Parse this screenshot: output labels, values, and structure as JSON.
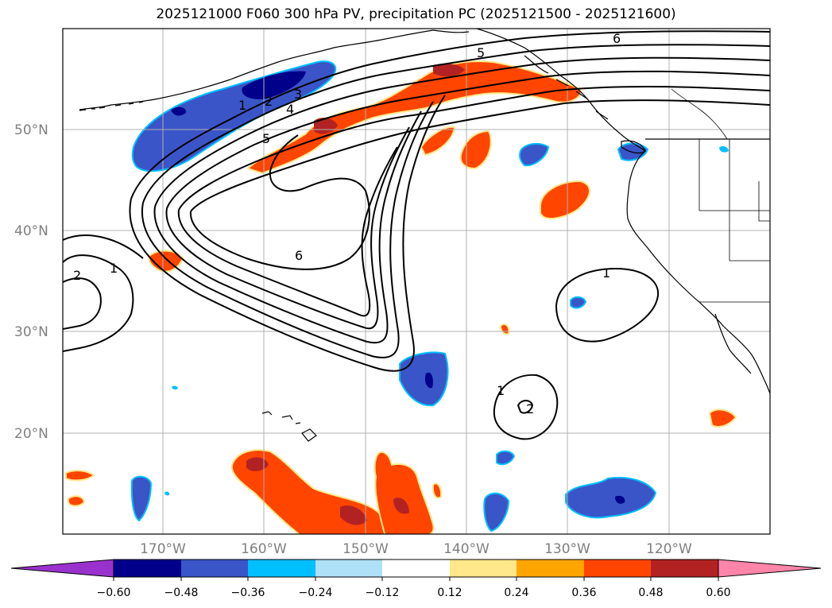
{
  "title": "2025121000 F060 300 hPa PV, precipitation PC (2025121500 - 2025121600)",
  "map": {
    "lat_labels": [
      "50°N",
      "40°N",
      "30°N",
      "20°N"
    ],
    "lon_labels": [
      "170°W",
      "160°W",
      "150°W",
      "140°W",
      "130°W",
      "120°W"
    ],
    "contour_labels": [
      "6",
      "5",
      "1",
      "2",
      "3",
      "4",
      "5",
      "6",
      "1",
      "2",
      "1",
      "1",
      "2"
    ]
  },
  "colorbar": {
    "ticks": [
      "−0.60",
      "−0.48",
      "−0.36",
      "−0.24",
      "−0.12",
      "0.12",
      "0.24",
      "0.36",
      "0.48",
      "0.60"
    ],
    "colors": [
      "#9932cc",
      "#00008b",
      "#3a55c8",
      "#00bfff",
      "#aee0f7",
      "#ffffff",
      "#ffe78a",
      "#ffa500",
      "#ff4500",
      "#b22222",
      "#ff85aa"
    ]
  },
  "colors": {
    "strong_positive": "#ff4500",
    "very_strong_positive": "#b22222",
    "strong_negative": "#3a55c8",
    "very_strong_negative": "#00008b",
    "weak_negative": "#00bfff",
    "weak_positive": "#ffe78a",
    "grid": "#b0b0b0",
    "land_outline": "#000000"
  }
}
